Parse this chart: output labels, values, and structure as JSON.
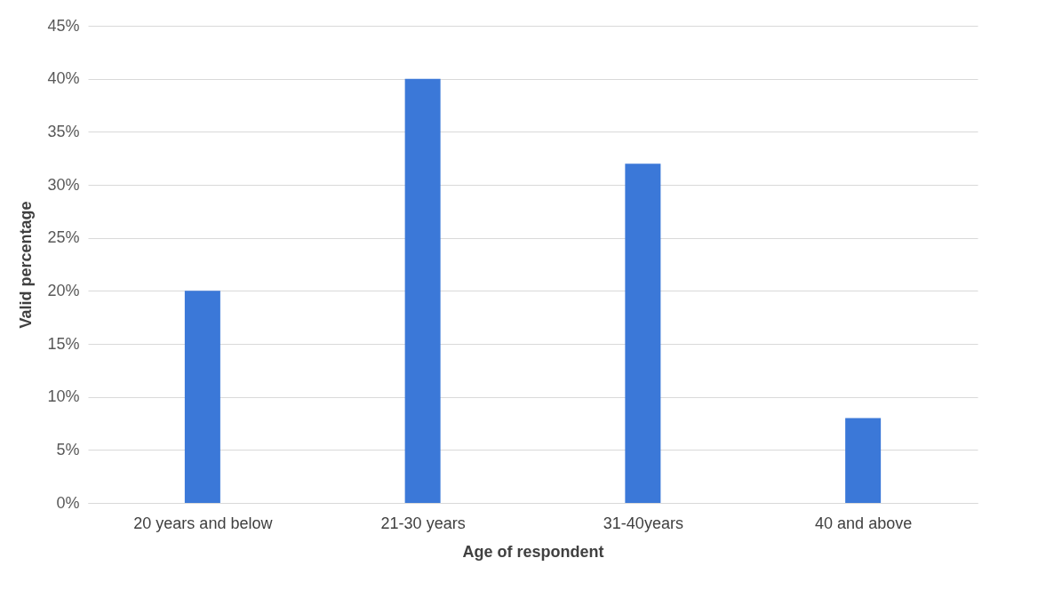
{
  "chart_data": {
    "type": "bar",
    "xlabel": "Age of respondent",
    "ylabel": "Valid percentage",
    "categories": [
      "20 years and below",
      "21-30 years",
      "31-40years",
      "40 and above"
    ],
    "values": [
      20,
      40,
      32,
      8
    ],
    "color": "#3b78d8",
    "ylim": [
      0,
      45
    ],
    "yticks": [
      {
        "value": 0,
        "label": "0%"
      },
      {
        "value": 5,
        "label": "5%"
      },
      {
        "value": 10,
        "label": "10%"
      },
      {
        "value": 15,
        "label": "15%"
      },
      {
        "value": 20,
        "label": "20%"
      },
      {
        "value": 25,
        "label": "25%"
      },
      {
        "value": 30,
        "label": "30%"
      },
      {
        "value": 35,
        "label": "35%"
      },
      {
        "value": 40,
        "label": "40%"
      },
      {
        "value": 45,
        "label": "45%"
      }
    ],
    "grid": "y"
  }
}
